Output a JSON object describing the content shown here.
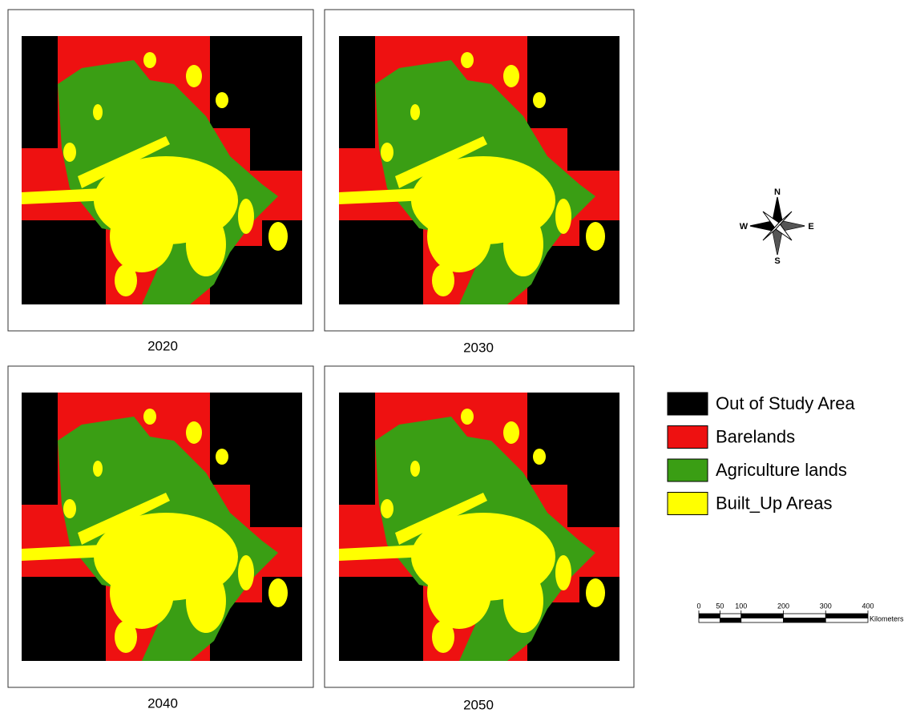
{
  "panels": [
    {
      "label": "2020"
    },
    {
      "label": "2030"
    },
    {
      "label": "2040"
    },
    {
      "label": "2050"
    }
  ],
  "compass": {
    "n": "N",
    "s": "S",
    "w": "W",
    "e": "E"
  },
  "legend": {
    "items": [
      {
        "label": "Out of Study Area",
        "color": "#000000"
      },
      {
        "label": "Barelands",
        "color": "#ee1111"
      },
      {
        "label": "Agriculture lands",
        "color": "#3a9e14"
      },
      {
        "label": "Built_Up Areas",
        "color": "#ffff00"
      }
    ]
  },
  "scale_bar": {
    "ticks": [
      0,
      50,
      100,
      200,
      300,
      400
    ],
    "unit": "Kilometers"
  }
}
